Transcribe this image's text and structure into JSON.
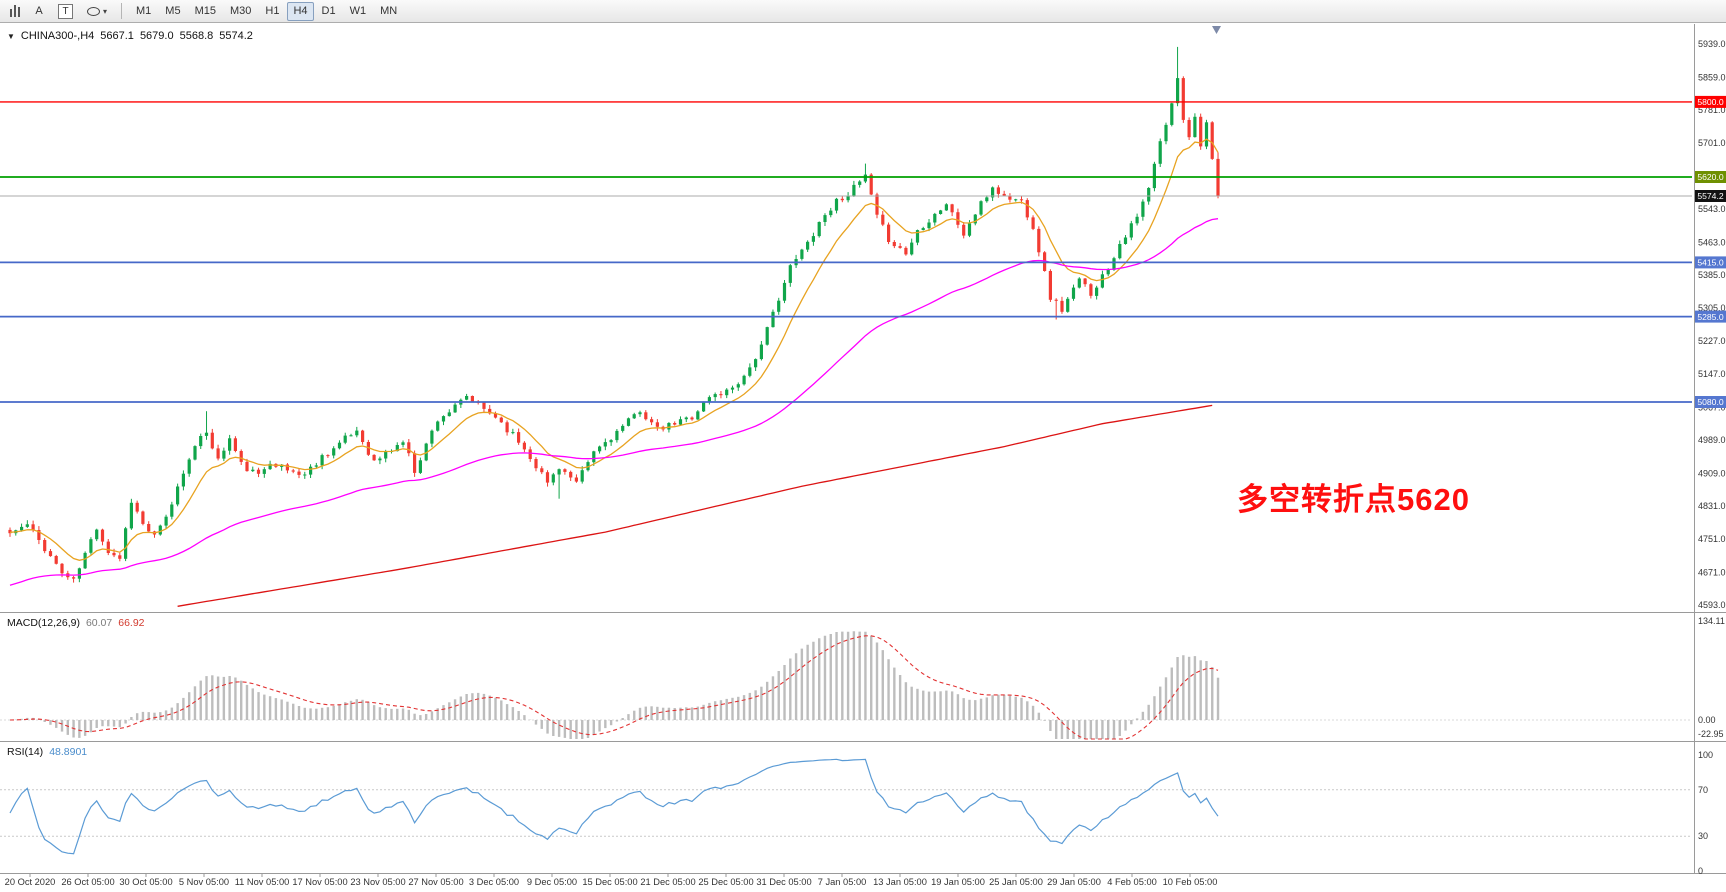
{
  "toolbar": {
    "text_tool": "A",
    "label_tool": "T",
    "dropdown_arrow": "▾",
    "timeframes": [
      {
        "label": "M1"
      },
      {
        "label": "M5"
      },
      {
        "label": "M15"
      },
      {
        "label": "M30"
      },
      {
        "label": "H1"
      },
      {
        "label": "H4",
        "active": true
      },
      {
        "label": "D1"
      },
      {
        "label": "W1"
      },
      {
        "label": "MN"
      }
    ]
  },
  "chart": {
    "symbol_line": {
      "dropdown": "▼",
      "symbol": "CHINA300-,H4",
      "open": "5667.1",
      "high": "5679.0",
      "low": "5568.8",
      "close": "5574.2"
    },
    "annotation": {
      "text": "多空转折点5620",
      "color": "#FF0F0F"
    },
    "price_axis": [
      "5939.0",
      "5859.0",
      "5781.0",
      "5701.0",
      "5623.0",
      "5543.0",
      "5463.0",
      "5385.0",
      "5305.0",
      "5227.0",
      "5147.0",
      "5067.0",
      "4989.0",
      "4909.0",
      "4831.0",
      "4751.0",
      "4671.0",
      "4593.0"
    ],
    "time_axis": [
      "20 Oct 2020",
      "26 Oct 05:00",
      "30 Oct 05:00",
      "5 Nov 05:00",
      "11 Nov 05:00",
      "17 Nov 05:00",
      "23 Nov 05:00",
      "27 Nov 05:00",
      "3 Dec 05:00",
      "9 Dec 05:00",
      "15 Dec 05:00",
      "21 Dec 05:00",
      "25 Dec 05:00",
      "31 Dec 05:00",
      "7 Jan 05:00",
      "13 Jan 05:00",
      "19 Jan 05:00",
      "25 Jan 05:00",
      "29 Jan 05:00",
      "4 Feb 05:00",
      "10 Feb 05:00"
    ]
  },
  "macd": {
    "label": "MACD(12,26,9)",
    "main_value": "60.07",
    "signal_value": "66.92",
    "axis": [
      "134.11",
      "0.00",
      "-22.95"
    ],
    "params": {
      "fast": 12,
      "slow": 26,
      "signal": 9
    }
  },
  "rsi": {
    "label": "RSI(14)",
    "value": "48.8901",
    "axis": [
      "100",
      "70",
      "30",
      "0"
    ],
    "levels": [
      70,
      30
    ],
    "period": 14
  },
  "chart_data": {
    "type": "candlestick",
    "title": "CHINA300-,H4",
    "symbol": "CHINA300",
    "period": "H4",
    "current_ohlc": {
      "open": 5667.1,
      "high": 5679.0,
      "low": 5568.8,
      "close": 5574.2
    },
    "price_range": [
      4593,
      5939
    ],
    "visible_time_range": {
      "from": "20 Oct 2020",
      "to": "10 Feb 2021"
    },
    "candle_count": 210,
    "noise_seed": 11,
    "colors": {
      "bull": "#10A54A",
      "bear": "#F23B32"
    },
    "annotation_text": "多空转折点5620",
    "close_anchors": [
      [
        0,
        4765
      ],
      [
        3,
        4785
      ],
      [
        6,
        4730
      ],
      [
        9,
        4670
      ],
      [
        11,
        4650
      ],
      [
        15,
        4780
      ],
      [
        17,
        4722
      ],
      [
        19,
        4706
      ],
      [
        21,
        4845
      ],
      [
        23,
        4786
      ],
      [
        25,
        4756
      ],
      [
        27,
        4800
      ],
      [
        31,
        4950
      ],
      [
        34,
        5010
      ],
      [
        36,
        4940
      ],
      [
        38,
        4992
      ],
      [
        40,
        4930
      ],
      [
        43,
        4902
      ],
      [
        45,
        4940
      ],
      [
        48,
        4916
      ],
      [
        51,
        4906
      ],
      [
        54,
        4950
      ],
      [
        57,
        4980
      ],
      [
        60,
        5012
      ],
      [
        63,
        4936
      ],
      [
        66,
        4966
      ],
      [
        68,
        4986
      ],
      [
        70,
        4916
      ],
      [
        74,
        5040
      ],
      [
        77,
        5066
      ],
      [
        79,
        5092
      ],
      [
        82,
        5062
      ],
      [
        84,
        5046
      ],
      [
        88,
        4986
      ],
      [
        90,
        4950
      ],
      [
        93,
        4886
      ],
      [
        95,
        4926
      ],
      [
        98,
        4882
      ],
      [
        101,
        4960
      ],
      [
        104,
        4996
      ],
      [
        107,
        5032
      ],
      [
        109,
        5062
      ],
      [
        112,
        5012
      ],
      [
        114,
        5022
      ],
      [
        118,
        5046
      ],
      [
        121,
        5092
      ],
      [
        124,
        5106
      ],
      [
        127,
        5142
      ],
      [
        130,
        5212
      ],
      [
        133,
        5332
      ],
      [
        135,
        5402
      ],
      [
        138,
        5462
      ],
      [
        140,
        5512
      ],
      [
        143,
        5562
      ],
      [
        146,
        5592
      ],
      [
        148,
        5622
      ],
      [
        150,
        5522
      ],
      [
        152,
        5472
      ],
      [
        155,
        5436
      ],
      [
        157,
        5492
      ],
      [
        160,
        5532
      ],
      [
        162,
        5556
      ],
      [
        165,
        5482
      ],
      [
        167,
        5532
      ],
      [
        170,
        5596
      ],
      [
        172,
        5572
      ],
      [
        175,
        5562
      ],
      [
        177,
        5502
      ],
      [
        180,
        5332
      ],
      [
        182,
        5302
      ],
      [
        185,
        5372
      ],
      [
        187,
        5342
      ],
      [
        190,
        5402
      ],
      [
        192,
        5462
      ],
      [
        195,
        5522
      ],
      [
        197,
        5592
      ],
      [
        199,
        5702
      ],
      [
        201,
        5792
      ],
      [
        202,
        5862
      ],
      [
        203,
        5762
      ],
      [
        204,
        5722
      ],
      [
        205,
        5762
      ],
      [
        206,
        5702
      ],
      [
        207,
        5750
      ],
      [
        208,
        5655
      ],
      [
        209,
        5574.2
      ]
    ],
    "overrides": [
      {
        "i": 34,
        "high": 5058
      },
      {
        "i": 95,
        "low": 4848
      },
      {
        "i": 148,
        "high": 5652
      },
      {
        "i": 181,
        "low": 5278
      },
      {
        "i": 202,
        "high": 5932
      },
      {
        "i": 209,
        "high": 5679,
        "low": 5568.8
      }
    ],
    "horizontal_lines": [
      {
        "price": 5800.0,
        "label": "5800.0",
        "color": "#FF0000",
        "width": 1.4,
        "role": "resistance"
      },
      {
        "price": 5620.0,
        "label": "5620.0",
        "color": "#00A000",
        "tag": "#6F9001",
        "width": 1.8,
        "role": "pivot"
      },
      {
        "price": 5574.2,
        "label": "5574.2",
        "color": "#ABABAB",
        "tag": "#121212",
        "width": 1,
        "role": "current-price"
      },
      {
        "price": 5415.0,
        "label": "5415.0",
        "color": "#4668C8",
        "tag": "#5577D0",
        "width": 1.8,
        "role": "support"
      },
      {
        "price": 5285.0,
        "label": "5285.0",
        "color": "#4668C8",
        "tag": "#5577D0",
        "width": 1.8,
        "role": "support"
      },
      {
        "price": 5080.0,
        "label": "5080.0",
        "color": "#4668C8",
        "tag": "#5577D0",
        "width": 1.8,
        "role": "support"
      }
    ],
    "moving_averages": [
      {
        "name": "fast",
        "type": "ema",
        "period": 10,
        "color": "#E8A321",
        "seed": 4768
      },
      {
        "name": "medium",
        "type": "ema",
        "period": 60,
        "color": "#FF00FF",
        "seed": 4636
      },
      {
        "name": "slow",
        "type": "anchors",
        "color": "#DC1414",
        "points": [
          [
            29,
            4590
          ],
          [
            68,
            4680
          ],
          [
            103,
            4768
          ],
          [
            137,
            4878
          ],
          [
            172,
            4973
          ],
          [
            189,
            5028
          ],
          [
            208,
            5072
          ]
        ]
      }
    ],
    "indicators": [
      {
        "name": "MACD",
        "params": [
          12,
          26,
          9
        ],
        "display_values": [
          60.07,
          66.92
        ],
        "axis_range": [
          -22.95,
          134.11
        ]
      },
      {
        "name": "RSI",
        "params": [
          14
        ],
        "display_value": 48.8901,
        "axis_range": [
          0,
          100
        ],
        "guide_levels": [
          30,
          70
        ]
      }
    ],
    "time_ticks": [
      "20 Oct 2020",
      "26 Oct 05:00",
      "30 Oct 05:00",
      "5 Nov 05:00",
      "11 Nov 05:00",
      "17 Nov 05:00",
      "23 Nov 05:00",
      "27 Nov 05:00",
      "3 Dec 05:00",
      "9 Dec 05:00",
      "15 Dec 05:00",
      "21 Dec 05:00",
      "25 Dec 05:00",
      "31 Dec 05:00",
      "7 Jan 05:00",
      "13 Jan 05:00",
      "19 Jan 05:00",
      "25 Jan 05:00",
      "29 Jan 05:00",
      "4 Feb 05:00",
      "10 Feb 05:00"
    ]
  }
}
